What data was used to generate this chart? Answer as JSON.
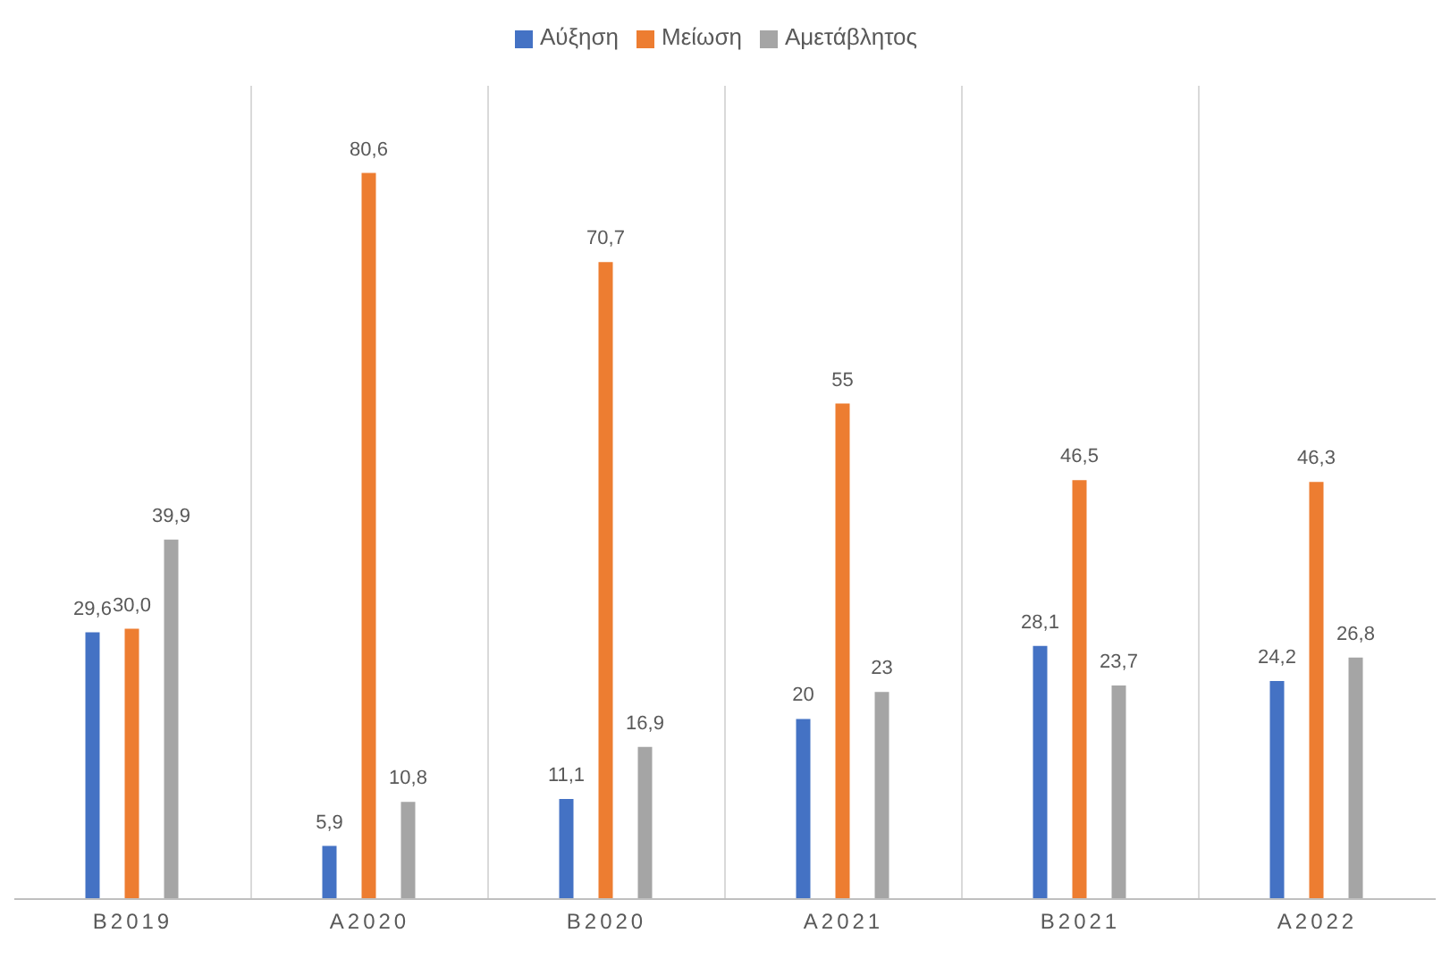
{
  "chart_data": {
    "type": "bar",
    "categories": [
      "B2019",
      "A2020",
      "B2020",
      "A2021",
      "B2021",
      "A2022"
    ],
    "series": [
      {
        "name": "Αύξηση",
        "color": "#4472c4",
        "values": [
          29.6,
          5.9,
          11.1,
          20,
          28.1,
          24.2
        ],
        "value_labels": [
          "29,6",
          "5,9",
          "11,1",
          "20",
          "28,1",
          "24,2"
        ]
      },
      {
        "name": "Μείωση",
        "color": "#ed7d31",
        "values": [
          30.0,
          80.6,
          70.7,
          55,
          46.5,
          46.3
        ],
        "value_labels": [
          "30,0",
          "80,6",
          "70,7",
          "55",
          "46,5",
          "46,3"
        ]
      },
      {
        "name": "Αμετάβλητος",
        "color": "#a5a5a5",
        "values": [
          39.9,
          10.8,
          16.9,
          23,
          23.7,
          26.8
        ],
        "value_labels": [
          "39,9",
          "10,8",
          "16,9",
          "23",
          "23,7",
          "26,8"
        ]
      }
    ],
    "legend": "top",
    "grid": "x"
  }
}
